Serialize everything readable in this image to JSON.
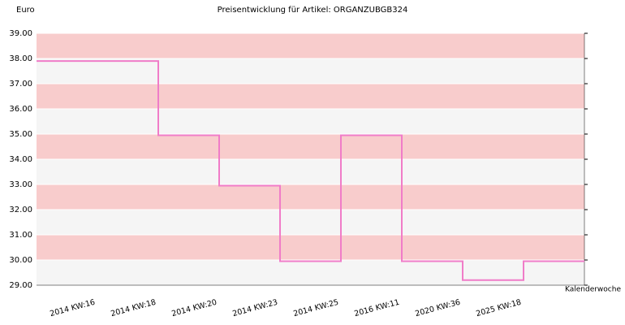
{
  "chart_data": {
    "type": "step-line",
    "title": "Preisentwicklung für Artikel: ORGANZUBGB324",
    "y_label": "Euro",
    "x_label": "Kalenderwoche",
    "categories": [
      "2014 KW:16",
      "2014 KW:18",
      "2014 KW:20",
      "2014 KW:23",
      "2014 KW:25",
      "2016 KW:11",
      "2020 KW:36",
      "2025 KW:18"
    ],
    "values": [
      37.9,
      34.95,
      32.95,
      29.95,
      34.95,
      29.95,
      29.2,
      29.95
    ],
    "color": "#f07cc8",
    "band_colors": [
      "#f5f5f5",
      "#f8cccc"
    ],
    "ylim": [
      29,
      39
    ],
    "yticks": [
      {
        "value": 29,
        "label": "29.00"
      },
      {
        "value": 30,
        "label": "30.00"
      },
      {
        "value": 31,
        "label": "31.00"
      },
      {
        "value": 32,
        "label": "32.00"
      },
      {
        "value": 33,
        "label": "33.00"
      },
      {
        "value": 34,
        "label": "34.00"
      },
      {
        "value": 35,
        "label": "35.00"
      },
      {
        "value": 36,
        "label": "36.00"
      },
      {
        "value": 37,
        "label": "37.00"
      },
      {
        "value": 38,
        "label": "38.00"
      },
      {
        "value": 39,
        "label": "39.00"
      }
    ]
  }
}
